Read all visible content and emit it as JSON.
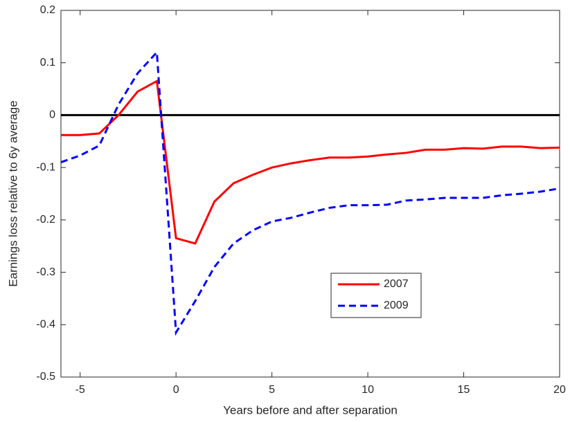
{
  "chart_data": {
    "type": "line",
    "xlabel": "Years before and after separation",
    "ylabel": "Earnings loss relative to 6y average",
    "x": [
      -6,
      -5,
      -4,
      -3,
      -2,
      -1,
      0,
      1,
      2,
      3,
      4,
      5,
      6,
      7,
      8,
      9,
      10,
      11,
      12,
      13,
      14,
      15,
      16,
      17,
      18,
      19,
      20
    ],
    "series": [
      {
        "name": "2007",
        "color": "#ff0000",
        "dash": false,
        "values": [
          -0.038,
          -0.038,
          -0.035,
          0.0,
          0.045,
          0.065,
          -0.235,
          -0.245,
          -0.165,
          -0.13,
          -0.114,
          -0.1,
          -0.092,
          -0.086,
          -0.081,
          -0.081,
          -0.079,
          -0.075,
          -0.072,
          -0.066,
          -0.066,
          -0.063,
          -0.064,
          -0.06,
          -0.06,
          -0.063,
          -0.062
        ]
      },
      {
        "name": "2009",
        "color": "#0000ff",
        "dash": true,
        "values": [
          -0.09,
          -0.077,
          -0.058,
          0.02,
          0.08,
          0.12,
          -0.415,
          -0.355,
          -0.29,
          -0.245,
          -0.22,
          -0.203,
          -0.196,
          -0.186,
          -0.177,
          -0.172,
          -0.172,
          -0.171,
          -0.163,
          -0.161,
          -0.158,
          -0.158,
          -0.158,
          -0.153,
          -0.15,
          -0.146,
          -0.14
        ]
      }
    ],
    "hline": 0,
    "xlim": [
      -6,
      20
    ],
    "xticks": [
      -5,
      0,
      5,
      10,
      15,
      20
    ],
    "ylim": [
      -0.5,
      0.2
    ],
    "yticks": [
      -0.5,
      -0.4,
      -0.3,
      -0.2,
      -0.1,
      0,
      0.1,
      0.2
    ]
  }
}
